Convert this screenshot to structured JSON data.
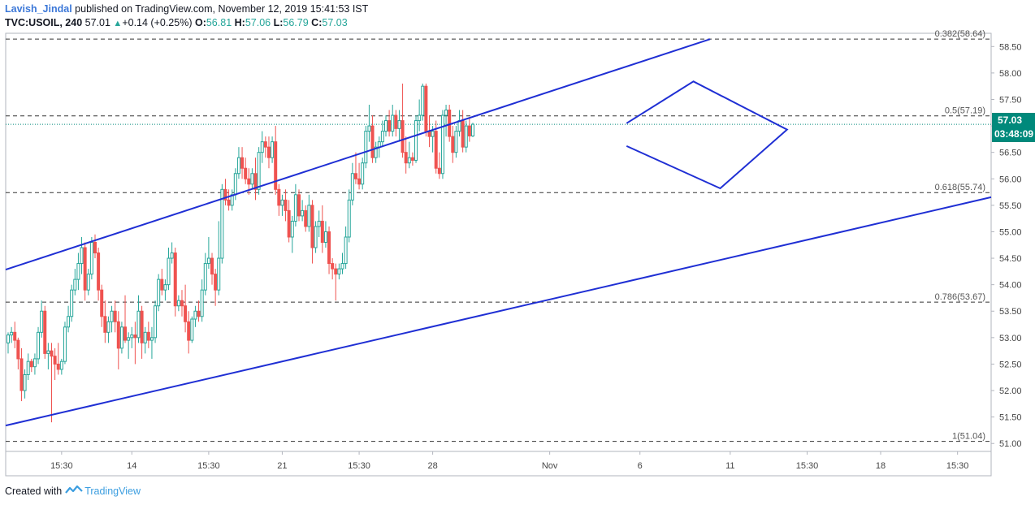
{
  "header": {
    "author": "Lavish_Jindal",
    "published": "published on TradingView.com, November 12, 2019 15:41:53 IST",
    "symbol": "TVC:USOIL, 240",
    "last": "57.01",
    "change": "+0.14 (+0.25%)",
    "o_label": "O:",
    "o_value": "56.81",
    "h_label": "H:",
    "h_value": "57.06",
    "l_label": "L:",
    "l_value": "56.79",
    "c_label": "C:",
    "c_value": "57.03"
  },
  "price_badge": {
    "price": "57.03",
    "countdown": "03:48:09",
    "color": "#00897b"
  },
  "footer": {
    "created_with": "Created with",
    "brand": "TradingView"
  },
  "chart_data": {
    "type": "candlestick",
    "symbol": "TVC:USOIL",
    "interval": "240",
    "y_ticks": [
      51.0,
      51.5,
      52.0,
      52.5,
      53.0,
      53.5,
      54.0,
      54.5,
      55.0,
      55.5,
      56.0,
      56.5,
      57.0,
      57.5,
      58.0,
      58.5
    ],
    "ylim": [
      50.85,
      58.75
    ],
    "x_ticks": [
      {
        "label": "15:30",
        "bar": 16
      },
      {
        "label": "14",
        "bar": 37
      },
      {
        "label": "15:30",
        "bar": 60
      },
      {
        "label": "21",
        "bar": 82
      },
      {
        "label": "15:30",
        "bar": 105
      },
      {
        "label": "28",
        "bar": 127
      },
      {
        "label": "Nov",
        "bar": 162
      },
      {
        "label": "6",
        "bar": 189
      },
      {
        "label": "11",
        "bar": 216
      },
      {
        "label": "15:30",
        "bar": 239
      },
      {
        "label": "18",
        "bar": 261
      },
      {
        "label": "15:30",
        "bar": 284
      }
    ],
    "fib_levels": [
      {
        "label": "0.382(58.64)",
        "value": 58.64
      },
      {
        "label": "0.5(57.19)",
        "value": 57.19
      },
      {
        "label": "0.618(55.74)",
        "value": 55.74
      },
      {
        "label": "0.786(53.67)",
        "value": 53.67
      },
      {
        "label": "1(51.04)",
        "value": 51.04
      }
    ],
    "last_price": 57.03,
    "up_color": "#26a69a",
    "down_color": "#ef5350",
    "line_color": "#1f2fd4",
    "channel_upper": [
      {
        "bar": 0,
        "price": 54.3
      },
      {
        "bar": 210,
        "price": 58.64
      }
    ],
    "channel_lower": [
      {
        "bar": 0,
        "price": 51.35
      },
      {
        "bar": 300,
        "price": 55.74
      }
    ],
    "triangle": [
      {
        "bar": 185,
        "price": 57.05
      },
      {
        "bar": 205,
        "price": 57.84
      },
      {
        "bar": 233,
        "price": 56.93
      },
      {
        "bar": 213,
        "price": 55.82
      },
      {
        "bar": 185,
        "price": 56.62
      }
    ],
    "candles": [
      [
        52.9,
        53.1,
        52.7,
        53.05
      ],
      [
        53.05,
        53.2,
        52.9,
        53.1
      ],
      [
        53.1,
        53.3,
        52.8,
        52.95
      ],
      [
        52.95,
        53.0,
        52.4,
        52.6
      ],
      [
        52.6,
        52.8,
        51.8,
        52.0
      ],
      [
        52.0,
        52.4,
        51.85,
        52.3
      ],
      [
        52.3,
        52.7,
        52.2,
        52.55
      ],
      [
        52.55,
        52.6,
        52.35,
        52.45
      ],
      [
        52.45,
        52.7,
        52.3,
        52.6
      ],
      [
        52.6,
        53.2,
        52.5,
        53.1
      ],
      [
        53.1,
        53.7,
        53.0,
        53.5
      ],
      [
        53.5,
        53.6,
        52.6,
        52.7
      ],
      [
        52.7,
        52.9,
        52.4,
        52.75
      ],
      [
        52.75,
        52.9,
        51.4,
        52.65
      ],
      [
        52.65,
        52.8,
        52.2,
        52.5
      ],
      [
        52.5,
        52.9,
        52.3,
        52.4
      ],
      [
        52.4,
        52.6,
        52.3,
        52.55
      ],
      [
        52.55,
        53.3,
        52.5,
        53.2
      ],
      [
        53.2,
        53.6,
        53.1,
        53.4
      ],
      [
        53.4,
        54.0,
        53.3,
        53.9
      ],
      [
        53.9,
        54.3,
        53.8,
        54.1
      ],
      [
        54.1,
        54.6,
        53.9,
        54.4
      ],
      [
        54.4,
        54.9,
        54.2,
        54.7
      ],
      [
        54.7,
        54.8,
        53.7,
        53.9
      ],
      [
        53.9,
        54.3,
        53.8,
        54.2
      ],
      [
        54.2,
        54.9,
        54.1,
        54.8
      ],
      [
        54.8,
        54.95,
        54.5,
        54.6
      ],
      [
        54.6,
        54.7,
        53.7,
        53.9
      ],
      [
        53.9,
        54.0,
        53.2,
        53.4
      ],
      [
        53.4,
        53.7,
        52.9,
        53.1
      ],
      [
        53.1,
        53.4,
        52.9,
        53.3
      ],
      [
        53.3,
        53.6,
        53.1,
        53.5
      ],
      [
        53.5,
        53.7,
        53.1,
        53.3
      ],
      [
        53.3,
        53.5,
        52.4,
        52.8
      ],
      [
        52.8,
        53.3,
        52.7,
        53.2
      ],
      [
        53.2,
        53.8,
        52.9,
        52.95
      ],
      [
        52.95,
        53.1,
        52.6,
        53.0
      ],
      [
        53.0,
        53.2,
        52.8,
        53.05
      ],
      [
        53.05,
        53.3,
        52.5,
        53.0
      ],
      [
        53.0,
        53.8,
        52.9,
        53.5
      ],
      [
        53.5,
        53.6,
        52.6,
        52.9
      ],
      [
        52.9,
        53.2,
        52.7,
        53.1
      ],
      [
        53.1,
        53.3,
        52.8,
        52.95
      ],
      [
        52.95,
        53.2,
        52.6,
        53.0
      ],
      [
        53.0,
        53.7,
        52.9,
        53.6
      ],
      [
        53.6,
        54.2,
        53.5,
        54.1
      ],
      [
        54.1,
        54.3,
        53.8,
        53.9
      ],
      [
        53.9,
        54.1,
        53.7,
        54.0
      ],
      [
        54.0,
        54.7,
        53.9,
        54.5
      ],
      [
        54.5,
        54.8,
        54.4,
        54.6
      ],
      [
        54.6,
        54.7,
        53.4,
        53.6
      ],
      [
        53.6,
        53.8,
        53.5,
        53.7
      ],
      [
        53.7,
        53.9,
        53.4,
        53.6
      ],
      [
        53.6,
        54.0,
        53.1,
        53.3
      ],
      [
        53.3,
        53.5,
        52.7,
        52.95
      ],
      [
        52.95,
        53.4,
        52.9,
        53.35
      ],
      [
        53.35,
        53.6,
        53.2,
        53.5
      ],
      [
        53.5,
        53.7,
        53.3,
        53.4
      ],
      [
        53.4,
        54.1,
        53.3,
        53.9
      ],
      [
        53.9,
        54.6,
        53.8,
        54.4
      ],
      [
        54.4,
        54.9,
        54.3,
        54.5
      ],
      [
        54.5,
        54.6,
        54.0,
        54.2
      ],
      [
        54.2,
        54.3,
        53.6,
        53.9
      ],
      [
        53.9,
        55.2,
        53.8,
        54.5
      ],
      [
        54.5,
        55.9,
        54.4,
        55.8
      ],
      [
        55.8,
        56.0,
        55.5,
        55.6
      ],
      [
        55.6,
        55.8,
        55.4,
        55.5
      ],
      [
        55.5,
        55.8,
        55.4,
        55.7
      ],
      [
        55.7,
        56.2,
        55.6,
        56.1
      ],
      [
        56.1,
        56.6,
        56.0,
        56.4
      ],
      [
        56.4,
        56.6,
        56.0,
        56.2
      ],
      [
        56.2,
        56.4,
        55.9,
        56.0
      ],
      [
        56.0,
        56.2,
        55.7,
        55.9
      ],
      [
        55.9,
        56.2,
        55.8,
        56.1
      ],
      [
        56.1,
        56.4,
        55.6,
        55.8
      ],
      [
        55.8,
        56.6,
        55.7,
        56.5
      ],
      [
        56.5,
        56.9,
        56.3,
        56.7
      ],
      [
        56.7,
        56.8,
        56.4,
        56.6
      ],
      [
        56.6,
        56.8,
        56.2,
        56.4
      ],
      [
        56.4,
        56.8,
        56.3,
        56.7
      ],
      [
        56.7,
        57.0,
        55.7,
        55.8
      ],
      [
        55.8,
        55.9,
        55.3,
        55.5
      ],
      [
        55.5,
        55.7,
        55.3,
        55.6
      ],
      [
        55.6,
        55.8,
        55.2,
        55.4
      ],
      [
        55.4,
        55.6,
        54.8,
        54.9
      ],
      [
        54.9,
        55.3,
        54.6,
        55.2
      ],
      [
        55.2,
        55.9,
        55.1,
        55.7
      ],
      [
        55.7,
        55.8,
        55.2,
        55.3
      ],
      [
        55.3,
        55.6,
        55.2,
        55.4
      ],
      [
        55.4,
        55.5,
        55.0,
        55.1
      ],
      [
        55.1,
        55.7,
        55.0,
        55.5
      ],
      [
        55.5,
        55.6,
        54.4,
        54.7
      ],
      [
        54.7,
        55.2,
        54.6,
        55.1
      ],
      [
        55.1,
        55.4,
        54.9,
        55.2
      ],
      [
        55.2,
        55.5,
        54.6,
        54.8
      ],
      [
        54.8,
        55.2,
        54.7,
        55.0
      ],
      [
        55.0,
        55.1,
        54.2,
        54.4
      ],
      [
        54.4,
        54.5,
        54.1,
        54.3
      ],
      [
        54.3,
        54.4,
        53.7,
        54.2
      ],
      [
        54.2,
        54.4,
        54.1,
        54.3
      ],
      [
        54.3,
        54.6,
        54.2,
        54.4
      ],
      [
        54.4,
        55.1,
        54.3,
        54.9
      ],
      [
        54.9,
        55.8,
        54.8,
        55.6
      ],
      [
        55.6,
        56.3,
        55.5,
        56.1
      ],
      [
        56.1,
        56.5,
        55.9,
        56.0
      ],
      [
        56.0,
        56.3,
        55.8,
        55.9
      ],
      [
        55.9,
        56.4,
        55.8,
        56.3
      ],
      [
        56.3,
        57.0,
        56.2,
        56.9
      ],
      [
        56.9,
        57.4,
        56.7,
        57.0
      ],
      [
        57.0,
        57.2,
        56.3,
        56.4
      ],
      [
        56.4,
        56.7,
        56.3,
        56.6
      ],
      [
        56.6,
        56.8,
        56.4,
        56.7
      ],
      [
        56.7,
        57.1,
        56.6,
        56.9
      ],
      [
        56.9,
        57.2,
        56.8,
        57.1
      ],
      [
        57.1,
        57.3,
        56.8,
        56.9
      ],
      [
        56.9,
        57.4,
        56.8,
        57.2
      ],
      [
        57.2,
        57.3,
        56.8,
        56.95
      ],
      [
        56.95,
        57.3,
        56.7,
        57.1
      ],
      [
        57.1,
        57.8,
        56.4,
        56.5
      ],
      [
        56.5,
        56.8,
        56.1,
        56.3
      ],
      [
        56.3,
        56.7,
        56.2,
        56.4
      ],
      [
        56.4,
        56.5,
        56.25,
        56.35
      ],
      [
        56.35,
        57.2,
        56.3,
        57.1
      ],
      [
        57.1,
        57.5,
        56.9,
        57.2
      ],
      [
        57.2,
        57.8,
        57.1,
        57.75
      ],
      [
        57.75,
        57.8,
        56.8,
        56.9
      ],
      [
        56.9,
        57.2,
        56.6,
        56.8
      ],
      [
        56.8,
        57.0,
        56.5,
        56.9
      ],
      [
        56.9,
        57.1,
        56.1,
        56.2
      ],
      [
        56.2,
        56.5,
        56.0,
        56.1
      ],
      [
        56.1,
        57.3,
        56.0,
        57.2
      ],
      [
        57.2,
        57.4,
        56.8,
        57.3
      ],
      [
        57.3,
        57.4,
        56.7,
        56.8
      ],
      [
        56.8,
        57.0,
        56.3,
        56.5
      ],
      [
        56.5,
        57.0,
        56.4,
        56.9
      ],
      [
        56.9,
        57.3,
        56.8,
        57.1
      ],
      [
        57.1,
        57.3,
        56.5,
        56.6
      ],
      [
        56.6,
        57.1,
        56.5,
        57.0
      ],
      [
        57.0,
        57.15,
        56.7,
        56.81
      ],
      [
        56.81,
        57.06,
        56.79,
        57.03
      ]
    ]
  }
}
